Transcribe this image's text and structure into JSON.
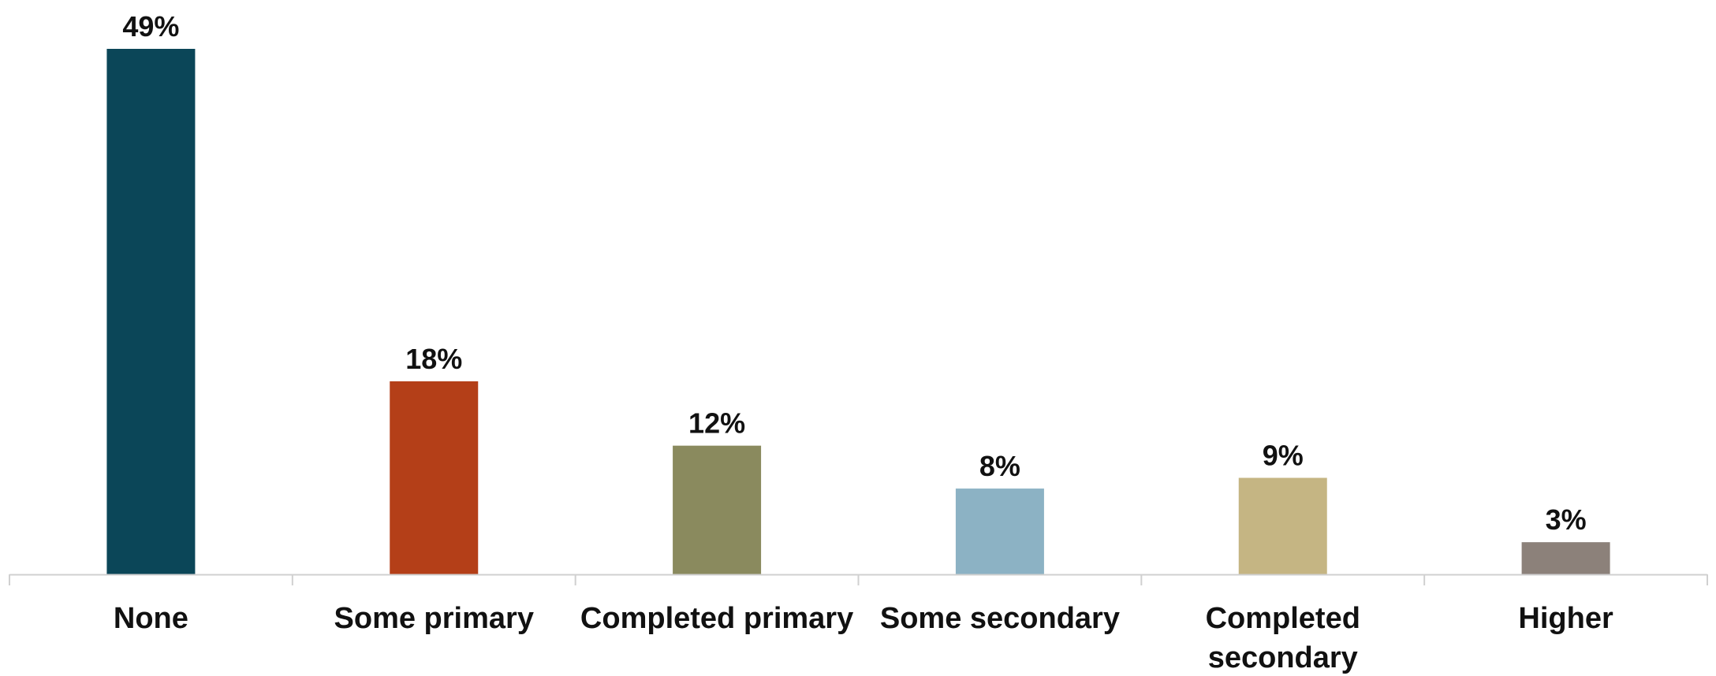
{
  "chart_data": {
    "type": "bar",
    "categories": [
      [
        "None"
      ],
      [
        "Some primary"
      ],
      [
        "Completed primary"
      ],
      [
        "Some secondary"
      ],
      [
        "Completed",
        "secondary"
      ],
      [
        "Higher"
      ]
    ],
    "values": [
      49,
      18,
      12,
      8,
      9,
      3
    ],
    "value_labels": [
      "49%",
      "18%",
      "12%",
      "8%",
      "9%",
      "3%"
    ],
    "colors": [
      "#0b4658",
      "#b43f18",
      "#8a8a5e",
      "#8cb2c4",
      "#c5b583",
      "#8c817a"
    ],
    "title": "",
    "xlabel": "",
    "ylabel": "",
    "ylim": [
      0,
      49
    ],
    "grid": false,
    "legend": "none"
  }
}
